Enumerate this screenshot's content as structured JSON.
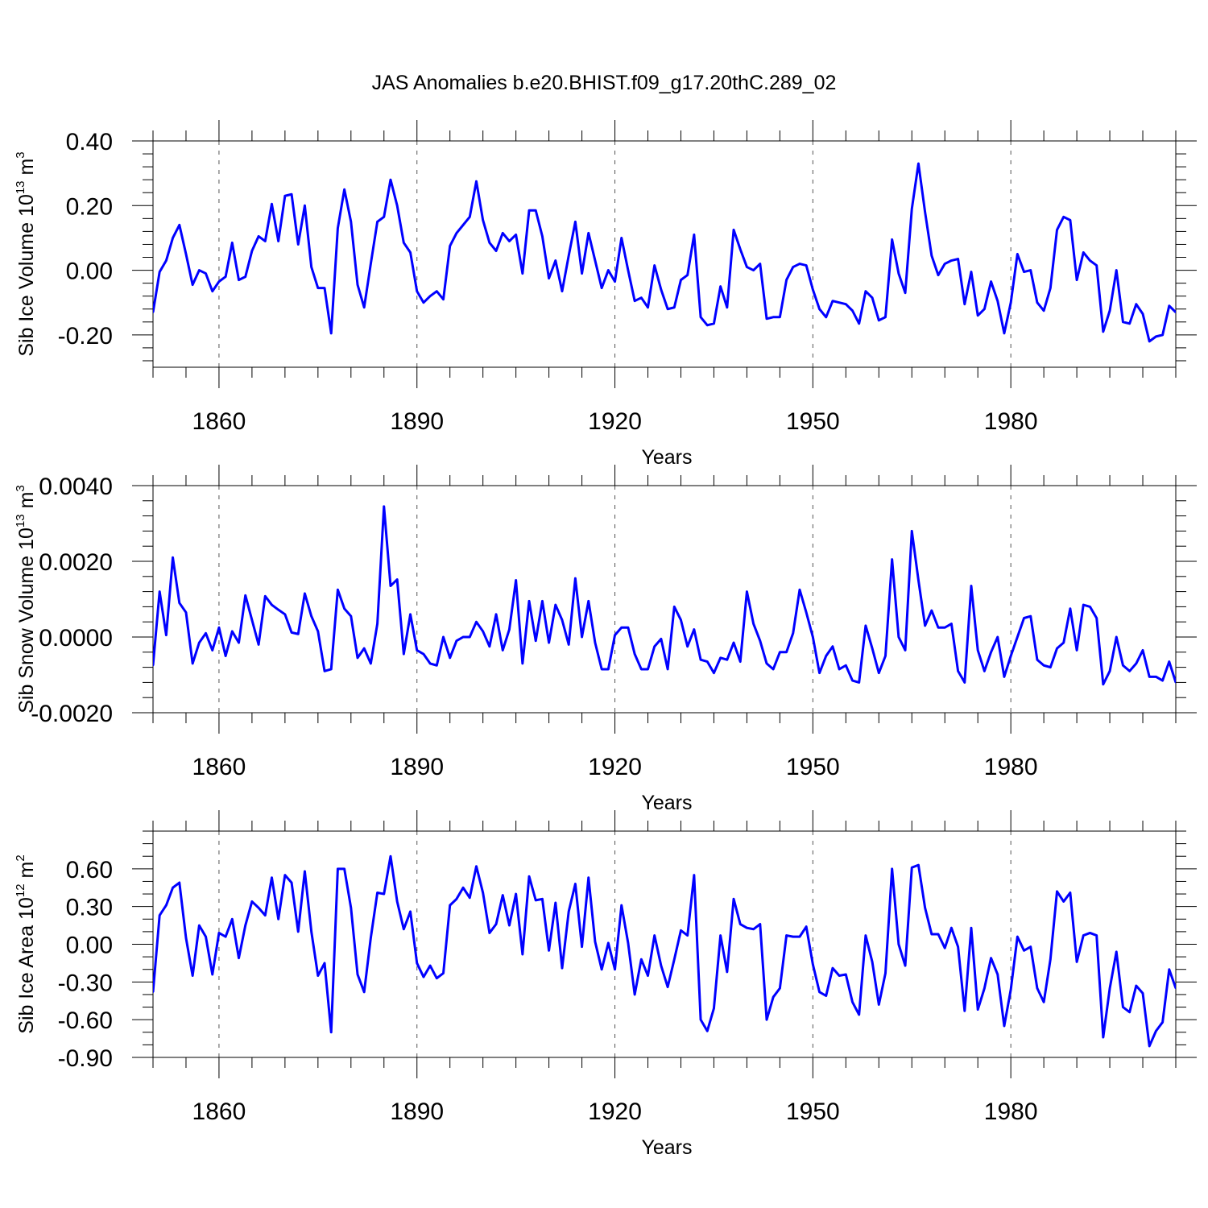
{
  "chart_data": {
    "title": "JAS Anomalies b.e20.BHIST.f09_g17.20thC.289_02",
    "x_start_year": 1850,
    "x_end_year": 2005,
    "x_major_ticks": [
      1860,
      1890,
      1920,
      1950,
      1980
    ],
    "x_tick_labels": [
      "1860",
      "1890",
      "1920",
      "1950",
      "1980"
    ],
    "line_color": "#0000ff",
    "panels": [
      {
        "type": "line",
        "ylabel_main": "Sib Ice Volume 10",
        "ylabel_sup": "13",
        "ylabel_unit": " m",
        "ylabel_unit_sup": "3",
        "xlabel": "Years",
        "ylim": [
          -0.3,
          0.4
        ],
        "y_ticks": [
          -0.2,
          0.0,
          0.2,
          0.4
        ],
        "y_tick_labels": [
          "-0.20",
          "0.00",
          "0.20",
          "0.40"
        ],
        "y_minor_step": 0.04,
        "values": [
          -0.13,
          -0.005,
          0.03,
          0.1,
          0.14,
          0.05,
          -0.045,
          0.0,
          -0.01,
          -0.065,
          -0.035,
          -0.02,
          0.085,
          -0.03,
          -0.02,
          0.06,
          0.105,
          0.09,
          0.205,
          0.09,
          0.23,
          0.235,
          0.08,
          0.2,
          0.01,
          -0.055,
          -0.055,
          -0.195,
          0.13,
          0.25,
          0.15,
          -0.045,
          -0.115,
          0.02,
          0.15,
          0.165,
          0.28,
          0.2,
          0.085,
          0.055,
          -0.065,
          -0.1,
          -0.08,
          -0.065,
          -0.09,
          0.075,
          0.115,
          0.14,
          0.165,
          0.275,
          0.155,
          0.085,
          0.06,
          0.115,
          0.09,
          0.11,
          -0.01,
          0.185,
          0.185,
          0.105,
          -0.025,
          0.03,
          -0.065,
          0.045,
          0.15,
          -0.01,
          0.115,
          0.03,
          -0.055,
          0.0,
          -0.035,
          0.1,
          0.0,
          -0.095,
          -0.085,
          -0.115,
          0.015,
          -0.06,
          -0.12,
          -0.115,
          -0.03,
          -0.015,
          0.11,
          -0.145,
          -0.17,
          -0.165,
          -0.05,
          -0.115,
          0.125,
          0.065,
          0.01,
          0.0,
          0.02,
          -0.15,
          -0.145,
          -0.145,
          -0.03,
          0.01,
          0.02,
          0.015,
          -0.06,
          -0.12,
          -0.145,
          -0.095,
          -0.1,
          -0.105,
          -0.125,
          -0.165,
          -0.065,
          -0.085,
          -0.155,
          -0.145,
          0.095,
          -0.01,
          -0.07,
          0.19,
          0.33,
          0.18,
          0.045,
          -0.015,
          0.02,
          0.03,
          0.035,
          -0.105,
          -0.005,
          -0.14,
          -0.12,
          -0.035,
          -0.095,
          -0.195,
          -0.1,
          0.05,
          -0.005,
          0.0,
          -0.1,
          -0.125,
          -0.055,
          0.125,
          0.165,
          0.155,
          -0.03,
          0.055,
          0.03,
          0.015,
          -0.19,
          -0.125,
          0.0,
          -0.16,
          -0.165,
          -0.105,
          -0.135,
          -0.22,
          -0.205,
          -0.2,
          -0.11,
          -0.13
        ]
      },
      {
        "type": "line",
        "ylabel_main": "Sib Snow Volume 10",
        "ylabel_sup": "13",
        "ylabel_unit": " m",
        "ylabel_unit_sup": "3",
        "xlabel": "Years",
        "ylim": [
          -0.002,
          0.004
        ],
        "y_ticks": [
          -0.002,
          0.0,
          0.002,
          0.004
        ],
        "y_tick_labels": [
          "-0.0020",
          "0.0000",
          "0.0020",
          "0.0040"
        ],
        "y_minor_step": 0.0004,
        "values": [
          -0.00075,
          0.0012,
          5e-05,
          0.0021,
          0.0009,
          0.00065,
          -0.0007,
          -0.00015,
          0.0001,
          -0.00035,
          0.00025,
          -0.0005,
          0.00015,
          -0.00015,
          0.0011,
          0.00045,
          -0.0002,
          0.00108,
          0.00085,
          0.00072,
          0.0006,
          0.00012,
          8e-05,
          0.00115,
          0.00055,
          0.00015,
          -0.0009,
          -0.00085,
          0.00125,
          0.00075,
          0.00055,
          -0.00055,
          -0.0003,
          -0.0007,
          0.00035,
          0.00345,
          0.00135,
          0.00152,
          -0.00045,
          0.0006,
          -0.00035,
          -0.00045,
          -0.0007,
          -0.00075,
          0.0,
          -0.00055,
          -0.0001,
          0.0,
          0.0,
          0.0004,
          0.00015,
          -0.00025,
          0.0006,
          -0.00035,
          0.0002,
          0.0015,
          -0.0007,
          0.00095,
          -0.0001,
          0.00095,
          -0.00015,
          0.00085,
          0.00045,
          -0.0002,
          0.00155,
          -0.0,
          0.00095,
          -0.00015,
          -0.00085,
          -0.00085,
          5e-05,
          0.00025,
          0.00025,
          -0.00045,
          -0.00085,
          -0.00085,
          -0.00025,
          -5e-05,
          -0.00085,
          0.0008,
          0.00045,
          -0.00025,
          0.0002,
          -0.0006,
          -0.00065,
          -0.00095,
          -0.00055,
          -0.0006,
          -0.00015,
          -0.00065,
          0.0012,
          0.00035,
          -0.0001,
          -0.0007,
          -0.00085,
          -0.0004,
          -0.0004,
          0.0001,
          0.00125,
          0.00065,
          0.0,
          -0.00095,
          -0.0005,
          -0.00025,
          -0.00085,
          -0.00075,
          -0.00115,
          -0.0012,
          0.0003,
          -0.0003,
          -0.00095,
          -0.0005,
          0.00205,
          0.0,
          -0.00035,
          0.0028,
          0.0015,
          0.0003,
          0.0007,
          0.00025,
          0.00025,
          0.00035,
          -0.0009,
          -0.0012,
          0.00135,
          -0.00035,
          -0.0009,
          -0.0004,
          0.0,
          -0.00105,
          -0.0005,
          0.0,
          0.0005,
          0.00055,
          -0.0006,
          -0.00075,
          -0.0008,
          -0.0003,
          -0.00015,
          0.00075,
          -0.00035,
          0.00085,
          0.0008,
          0.0005,
          -0.00125,
          -0.0009,
          0.0,
          -0.00075,
          -0.0009,
          -0.0007,
          -0.00035,
          -0.00105,
          -0.00105,
          -0.00115,
          -0.00065,
          -0.0012
        ]
      },
      {
        "type": "line",
        "ylabel_main": "Sib Ice Area 10",
        "ylabel_sup": "12",
        "ylabel_unit": " m",
        "ylabel_unit_sup": "2",
        "xlabel": "Years",
        "ylim": [
          -0.9,
          0.9
        ],
        "y_ticks": [
          -0.9,
          -0.6,
          -0.3,
          0.0,
          0.3,
          0.6
        ],
        "y_tick_labels": [
          "-0.90",
          "-0.60",
          "-0.30",
          "0.00",
          "0.30",
          "0.60"
        ],
        "y_minor_step": 0.1,
        "values": [
          -0.38,
          0.23,
          0.31,
          0.45,
          0.49,
          0.05,
          -0.25,
          0.15,
          0.06,
          -0.24,
          0.09,
          0.06,
          0.2,
          -0.11,
          0.15,
          0.34,
          0.29,
          0.23,
          0.53,
          0.2,
          0.55,
          0.49,
          0.1,
          0.58,
          0.1,
          -0.25,
          -0.15,
          -0.7,
          0.6,
          0.6,
          0.29,
          -0.24,
          -0.38,
          0.05,
          0.41,
          0.4,
          0.7,
          0.34,
          0.12,
          0.26,
          -0.15,
          -0.26,
          -0.17,
          -0.27,
          -0.23,
          0.31,
          0.36,
          0.45,
          0.37,
          0.62,
          0.41,
          0.09,
          0.16,
          0.39,
          0.15,
          0.4,
          -0.08,
          0.54,
          0.35,
          0.36,
          -0.05,
          0.33,
          -0.19,
          0.26,
          0.48,
          -0.02,
          0.53,
          0.02,
          -0.2,
          0.01,
          -0.2,
          0.31,
          0.01,
          -0.4,
          -0.12,
          -0.25,
          0.07,
          -0.17,
          -0.34,
          -0.12,
          0.11,
          0.07,
          0.55,
          -0.6,
          -0.69,
          -0.51,
          0.07,
          -0.22,
          0.36,
          0.16,
          0.13,
          0.12,
          0.16,
          -0.6,
          -0.42,
          -0.35,
          0.07,
          0.06,
          0.06,
          0.14,
          -0.16,
          -0.38,
          -0.41,
          -0.19,
          -0.25,
          -0.24,
          -0.46,
          -0.56,
          0.07,
          -0.14,
          -0.48,
          -0.23,
          0.6,
          0.0,
          -0.17,
          0.61,
          0.63,
          0.29,
          0.08,
          0.08,
          -0.03,
          0.13,
          -0.02,
          -0.53,
          0.13,
          -0.52,
          -0.35,
          -0.11,
          -0.24,
          -0.65,
          -0.36,
          0.06,
          -0.05,
          -0.02,
          -0.35,
          -0.46,
          -0.12,
          0.42,
          0.34,
          0.41,
          -0.14,
          0.07,
          0.09,
          0.07,
          -0.74,
          -0.35,
          -0.06,
          -0.5,
          -0.54,
          -0.33,
          -0.39,
          -0.81,
          -0.69,
          -0.62,
          -0.2,
          -0.35
        ]
      }
    ]
  }
}
